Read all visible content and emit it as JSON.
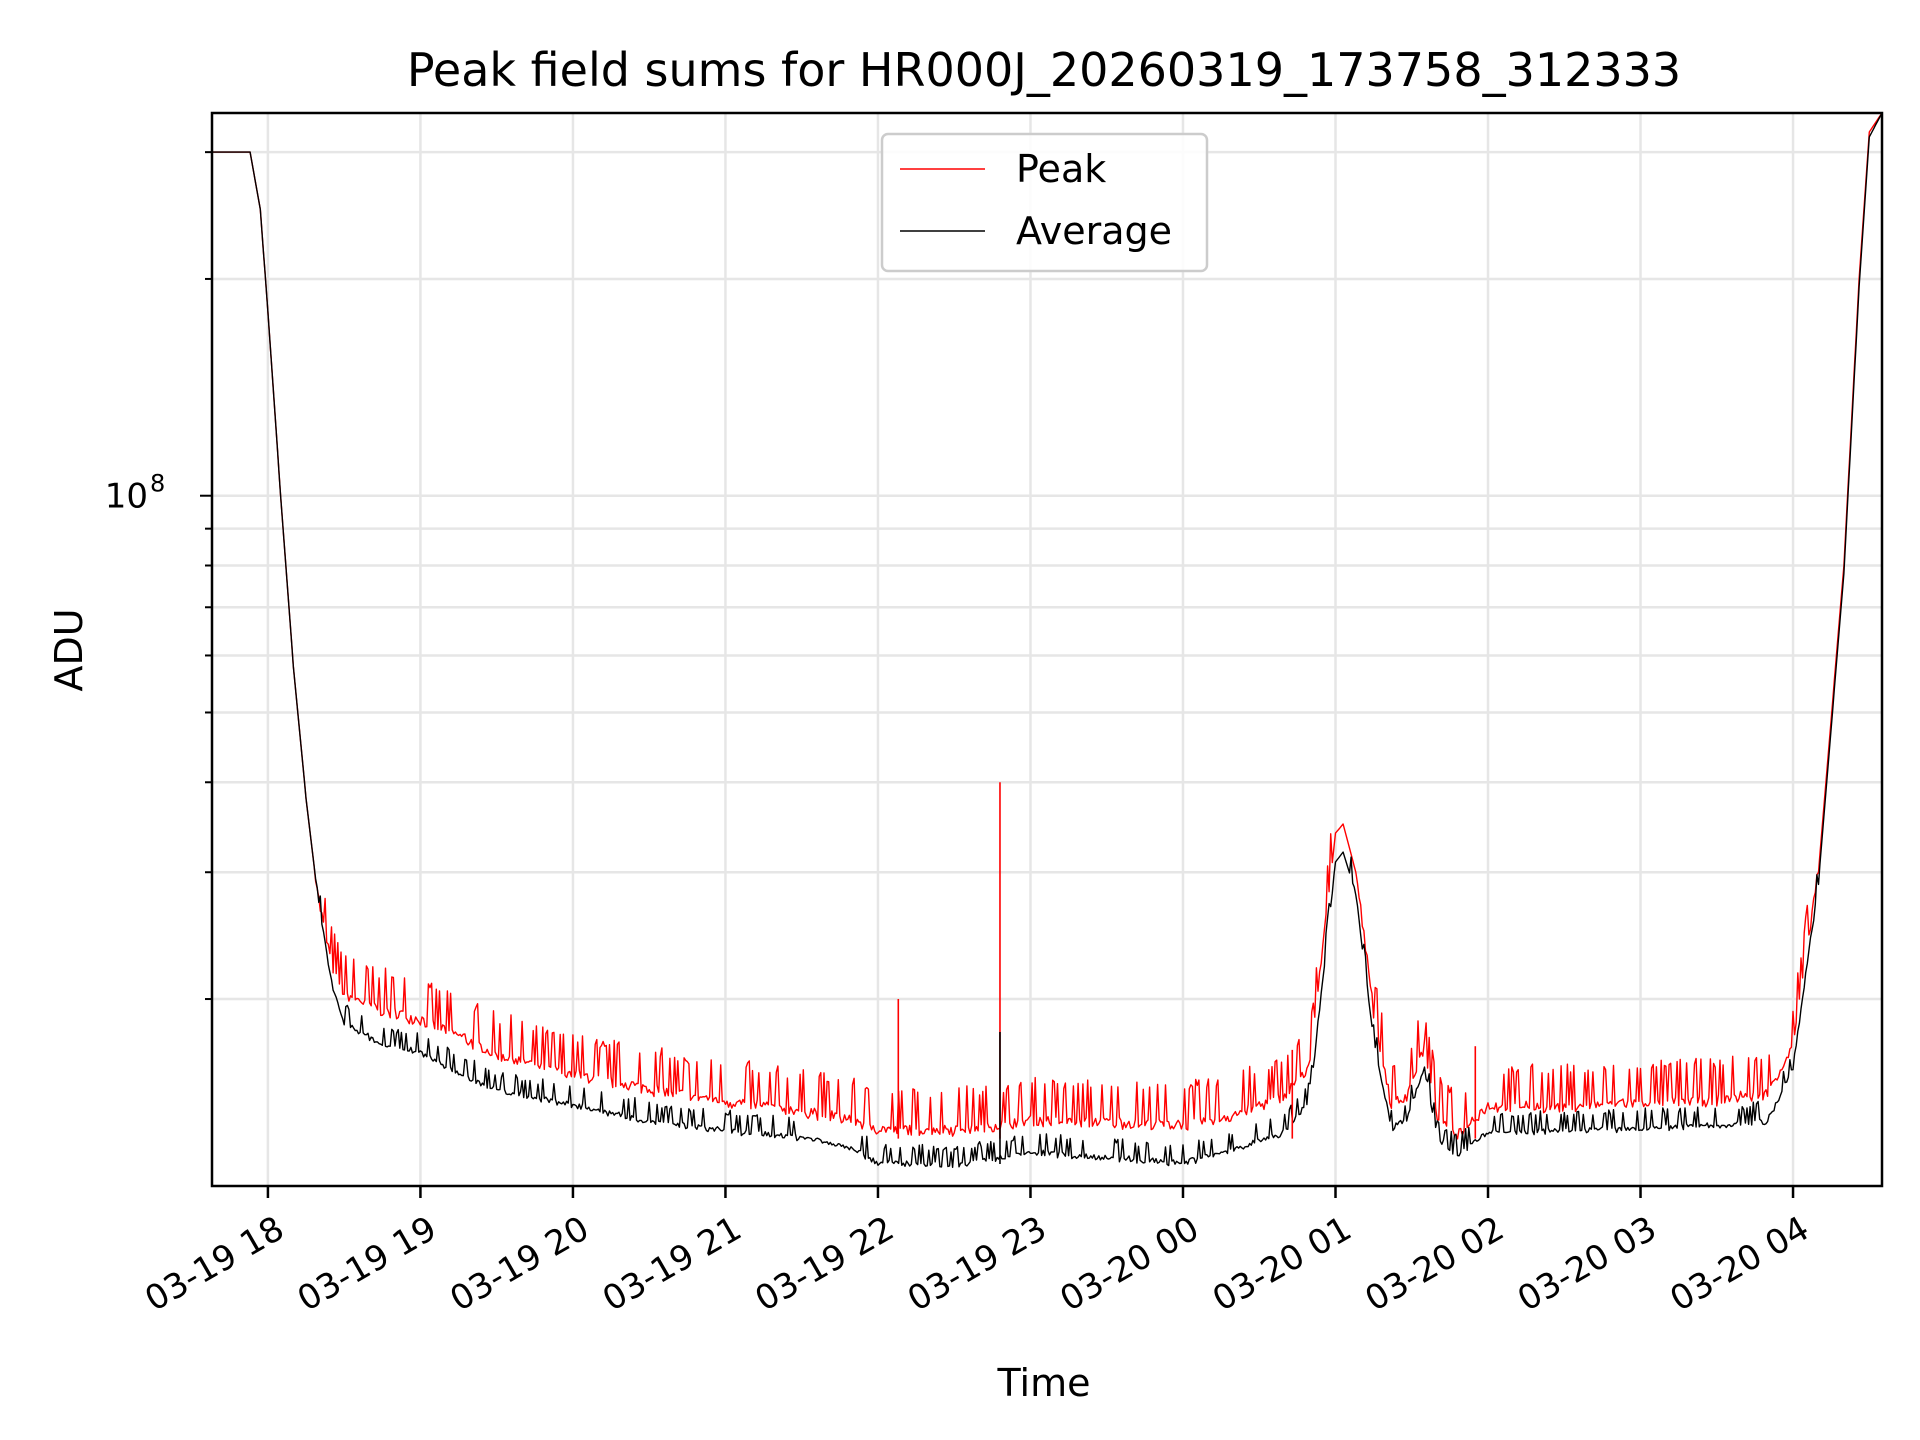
{
  "chart_data": {
    "type": "line",
    "title": "Peak field sums for HR000J_20260319_173758_312333",
    "xlabel": "Time",
    "ylabel": "ADU",
    "y_scale": "log",
    "ylim": [
      11000000,
      340000000
    ],
    "xlim": [
      "2026-03-19 17:38",
      "2026-03-20 04:35"
    ],
    "x_tick_labels": [
      "03-19 18",
      "03-19 19",
      "03-19 20",
      "03-19 21",
      "03-19 22",
      "03-19 23",
      "03-20 00",
      "03-20 01",
      "03-20 02",
      "03-20 03",
      "03-20 04"
    ],
    "x_ticks": [
      "2026-03-19 18:00",
      "2026-03-19 19:00",
      "2026-03-19 20:00",
      "2026-03-19 21:00",
      "2026-03-19 22:00",
      "2026-03-19 23:00",
      "2026-03-20 00:00",
      "2026-03-20 01:00",
      "2026-03-20 02:00",
      "2026-03-20 03:00",
      "2026-03-20 04:00"
    ],
    "y_tick_label": "10",
    "y_tick_exponent": "8",
    "y_tick_value": 100000000,
    "grid": true,
    "legend_position": "top-center",
    "series": [
      {
        "name": "Peak",
        "color": "#ff0000",
        "x": [
          "2026-03-19 17:38",
          "2026-03-19 17:50",
          "2026-03-19 17:53",
          "2026-03-19 17:57",
          "2026-03-19 18:00",
          "2026-03-19 18:05",
          "2026-03-19 18:10",
          "2026-03-19 18:15",
          "2026-03-19 18:20",
          "2026-03-19 18:25",
          "2026-03-19 18:30",
          "2026-03-19 18:45",
          "2026-03-19 19:00",
          "2026-03-19 19:15",
          "2026-03-19 19:30",
          "2026-03-19 20:00",
          "2026-03-19 20:30",
          "2026-03-19 21:00",
          "2026-03-19 21:30",
          "2026-03-19 21:50",
          "2026-03-19 22:00",
          "2026-03-19 22:30",
          "2026-03-19 22:50",
          "2026-03-19 23:00",
          "2026-03-19 23:30",
          "2026-03-20 00:00",
          "2026-03-20 00:20",
          "2026-03-20 00:40",
          "2026-03-20 00:50",
          "2026-03-20 01:00",
          "2026-03-20 01:03",
          "2026-03-20 01:08",
          "2026-03-20 01:15",
          "2026-03-20 01:22",
          "2026-03-20 01:28",
          "2026-03-20 01:35",
          "2026-03-20 01:40",
          "2026-03-20 01:48",
          "2026-03-20 01:55",
          "2026-03-20 02:00",
          "2026-03-20 02:30",
          "2026-03-20 03:00",
          "2026-03-20 03:30",
          "2026-03-20 03:50",
          "2026-03-20 04:00",
          "2026-03-20 04:10",
          "2026-03-20 04:20",
          "2026-03-20 04:26",
          "2026-03-20 04:30",
          "2026-03-20 04:35"
        ],
        "y": [
          300000000,
          300000000,
          300000000,
          250000000,
          180000000,
          100000000,
          58000000,
          38000000,
          27000000,
          22000000,
          20000000,
          19000000,
          18500000,
          17500000,
          16500000,
          15500000,
          14800000,
          14200000,
          13800000,
          13400000,
          13000000,
          13000000,
          13200000,
          13400000,
          13300000,
          13200000,
          13600000,
          14500000,
          16000000,
          34000000,
          35000000,
          30000000,
          19000000,
          14000000,
          14500000,
          17000000,
          13600000,
          12800000,
          13500000,
          14000000,
          14000000,
          14200000,
          14300000,
          14600000,
          17000000,
          30000000,
          80000000,
          200000000,
          320000000,
          340000000
        ]
      },
      {
        "name": "Average",
        "color": "#000000",
        "x": [
          "2026-03-19 17:38",
          "2026-03-19 17:50",
          "2026-03-19 17:53",
          "2026-03-19 17:57",
          "2026-03-19 18:00",
          "2026-03-19 18:05",
          "2026-03-19 18:10",
          "2026-03-19 18:15",
          "2026-03-19 18:20",
          "2026-03-19 18:25",
          "2026-03-19 18:30",
          "2026-03-19 18:45",
          "2026-03-19 19:00",
          "2026-03-19 19:15",
          "2026-03-19 19:30",
          "2026-03-19 20:00",
          "2026-03-19 20:30",
          "2026-03-19 21:00",
          "2026-03-19 21:30",
          "2026-03-19 21:50",
          "2026-03-19 22:00",
          "2026-03-19 22:30",
          "2026-03-19 22:50",
          "2026-03-19 23:00",
          "2026-03-19 23:30",
          "2026-03-20 00:00",
          "2026-03-20 00:20",
          "2026-03-20 00:40",
          "2026-03-20 00:50",
          "2026-03-20 01:00",
          "2026-03-20 01:03",
          "2026-03-20 01:08",
          "2026-03-20 01:15",
          "2026-03-20 01:22",
          "2026-03-20 01:28",
          "2026-03-20 01:35",
          "2026-03-20 01:40",
          "2026-03-20 01:48",
          "2026-03-20 01:55",
          "2026-03-20 02:00",
          "2026-03-20 02:30",
          "2026-03-20 03:00",
          "2026-03-20 03:30",
          "2026-03-20 03:50",
          "2026-03-20 04:00",
          "2026-03-20 04:10",
          "2026-03-20 04:20",
          "2026-03-20 04:26",
          "2026-03-20 04:30",
          "2026-03-20 04:35"
        ],
        "y": [
          300000000,
          300000000,
          300000000,
          250000000,
          180000000,
          100000000,
          58000000,
          38000000,
          27000000,
          21000000,
          18500000,
          17200000,
          16800000,
          15700000,
          14900000,
          14200000,
          13500000,
          13100000,
          12800000,
          12400000,
          11800000,
          11700000,
          12000000,
          12200000,
          12000000,
          11800000,
          12300000,
          13000000,
          14500000,
          31000000,
          32000000,
          28000000,
          17500000,
          13200000,
          13600000,
          16000000,
          12800000,
          12100000,
          12700000,
          13000000,
          13100000,
          13200000,
          13300000,
          13500000,
          16000000,
          29000000,
          78000000,
          195000000,
          315000000,
          340000000
        ]
      }
    ],
    "spikes": [
      {
        "series": "Peak",
        "x": "2026-03-19 22:08",
        "y": 20000000
      },
      {
        "series": "Peak",
        "x": "2026-03-19 22:48",
        "y": 40000000
      },
      {
        "series": "Average",
        "x": "2026-03-19 22:48",
        "y": 18000000
      },
      {
        "series": "Peak",
        "x": "2026-03-20 00:43",
        "y": 17000000
      },
      {
        "series": "Peak",
        "x": "2026-03-20 01:55",
        "y": 17200000
      }
    ]
  }
}
